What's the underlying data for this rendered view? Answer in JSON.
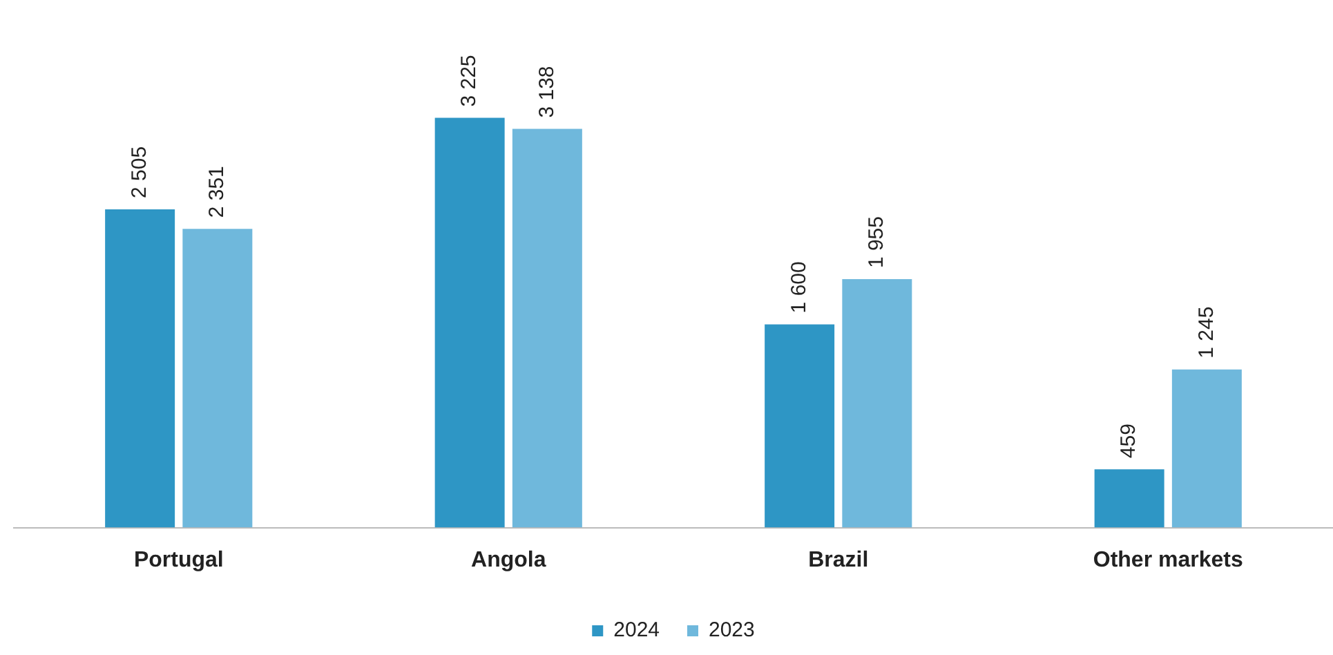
{
  "chart_data": {
    "type": "bar",
    "categories": [
      "Portugal",
      "Angola",
      "Brazil",
      "Other markets"
    ],
    "series": [
      {
        "name": "2024",
        "color": "#2e96c5",
        "values": [
          2505,
          3225,
          1600,
          459
        ],
        "value_labels": [
          "2 505",
          "3 225",
          "1 600",
          "459"
        ]
      },
      {
        "name": "2023",
        "color": "#6fb8dc",
        "values": [
          2351,
          3138,
          1955,
          1245
        ],
        "value_labels": [
          "2 351",
          "3 138",
          "1 955",
          "1 245"
        ]
      }
    ],
    "grid": false,
    "legend": "bottom"
  }
}
